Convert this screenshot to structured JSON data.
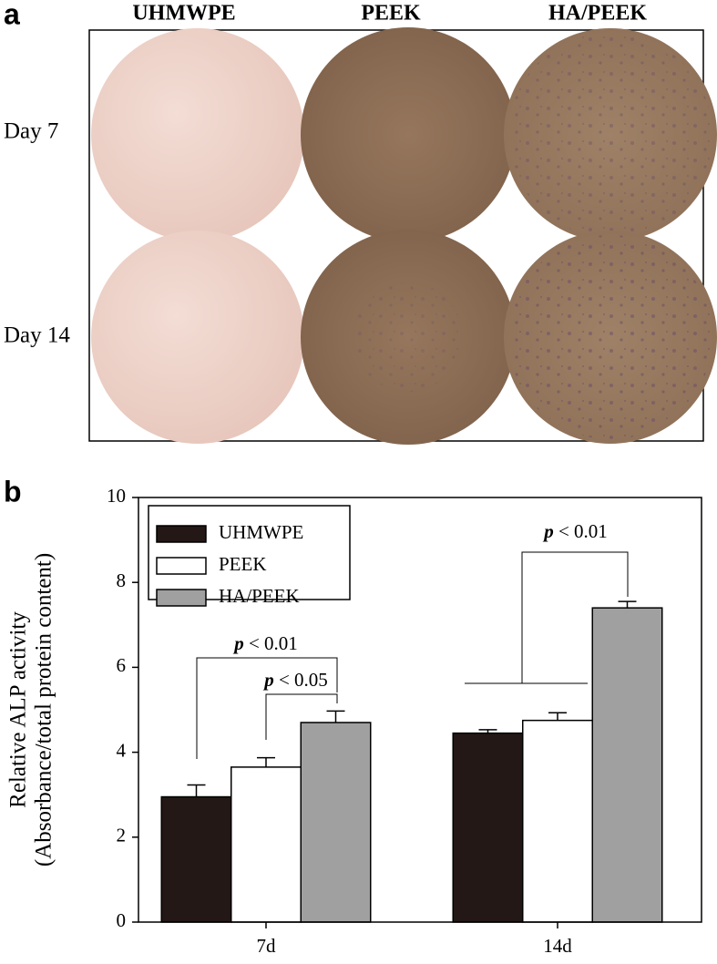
{
  "panel_a": {
    "label": "a",
    "columns": [
      "UHMWPE",
      "PEEK",
      "HA/PEEK"
    ],
    "rows": [
      "Day 7",
      "Day 14"
    ]
  },
  "chart_data": {
    "type": "bar",
    "panel_label": "b",
    "y_label": [
      "Relative ALP activity",
      "(Absorbance/total protein content)"
    ],
    "categories": [
      "7d",
      "14d"
    ],
    "series": [
      {
        "name": "UHMWPE",
        "color": "#231815",
        "values": [
          2.95,
          4.45
        ],
        "errors": [
          0.28,
          0.08
        ]
      },
      {
        "name": "PEEK",
        "color": "#ffffff",
        "values": [
          3.65,
          4.75
        ],
        "errors": [
          0.22,
          0.18
        ]
      },
      {
        "name": "HA/PEEK",
        "color": "#a0a0a0",
        "values": [
          4.7,
          7.4
        ],
        "errors": [
          0.27,
          0.15
        ]
      }
    ],
    "ylim": [
      0,
      10
    ],
    "yticks": [
      0,
      2,
      4,
      6,
      8,
      10
    ],
    "legend": "upper left",
    "annotations": [
      {
        "symbol": "p",
        "text": "< 0.01"
      },
      {
        "symbol": "p",
        "text": "< 0.05"
      },
      {
        "symbol": "p",
        "text": "< 0.01"
      }
    ]
  }
}
